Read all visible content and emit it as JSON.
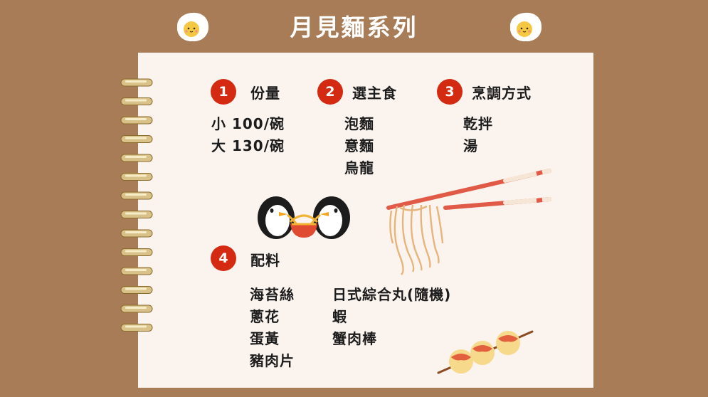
{
  "title": "月見麵系列",
  "sections": {
    "portion": {
      "number": "1",
      "heading": "份量",
      "items": [
        "小 100/碗",
        "大 130/碗"
      ]
    },
    "staple": {
      "number": "2",
      "heading": "選主食",
      "items": [
        "泡麵",
        "意麵",
        "烏龍"
      ]
    },
    "cooking": {
      "number": "3",
      "heading": "烹調方式",
      "items": [
        "乾拌",
        "湯"
      ]
    },
    "toppings": {
      "number": "4",
      "heading": "配料",
      "col1": [
        "海苔絲",
        "蔥花",
        "蛋黃",
        "豬肉片"
      ],
      "col2": [
        "日式綜合丸(隨機)",
        "蝦",
        "蟹肉棒"
      ]
    }
  },
  "colors": {
    "background": "#a87c56",
    "paper": "#faf3ee",
    "accent": "#d42a12",
    "title": "#ffffff"
  },
  "icons": [
    "fried-egg-icon",
    "spiral-binding-icon",
    "penguins-noodle-icon",
    "chopsticks-noodles-icon",
    "takoyaki-skewer-icon"
  ]
}
